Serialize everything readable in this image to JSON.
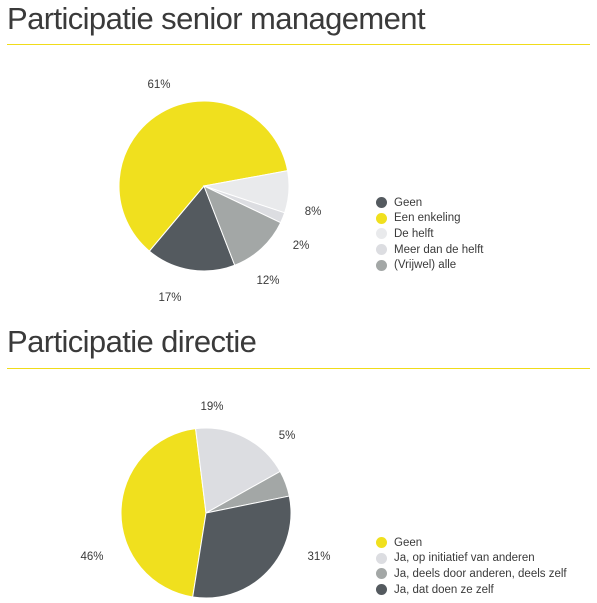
{
  "colors": {
    "yellow": "#f0e01e",
    "dark": "#545a5f",
    "light": "#e9eaec",
    "lighter": "#dcdde1",
    "mid": "#a3a7a6",
    "rule": "#f0dc1a"
  },
  "chart_data": [
    {
      "type": "pie",
      "title": "Participatie senior management",
      "legend_position": "right",
      "slices": [
        {
          "label": "Geen",
          "value": 17,
          "display": "17%",
          "color": "#545a5f"
        },
        {
          "label": "Een enkeling",
          "value": 61,
          "display": "61%",
          "color": "#f0e01e"
        },
        {
          "label": "De helft",
          "value": 8,
          "display": "8%",
          "color": "#e9eaec"
        },
        {
          "label": "Meer dan de helft",
          "value": 2,
          "display": "2%",
          "color": "#dcdde1"
        },
        {
          "label": "(Vrijwel) alle",
          "value": 12,
          "display": "12%",
          "color": "#a3a7a6"
        }
      ]
    },
    {
      "type": "pie",
      "title": "Participatie directie",
      "legend_position": "right",
      "slices": [
        {
          "label": "Geen",
          "value": 46,
          "display": "46%",
          "color": "#f0e01e"
        },
        {
          "label": "Ja, op initiatief van anderen",
          "value": 19,
          "display": "19%",
          "color": "#dcdde1"
        },
        {
          "label": "Ja, deels door anderen, deels zelf",
          "value": 5,
          "display": "5%",
          "color": "#a3a7a6"
        },
        {
          "label": "Ja, dat doen ze zelf",
          "value": 31,
          "display": "31%",
          "color": "#545a5f"
        }
      ]
    }
  ]
}
